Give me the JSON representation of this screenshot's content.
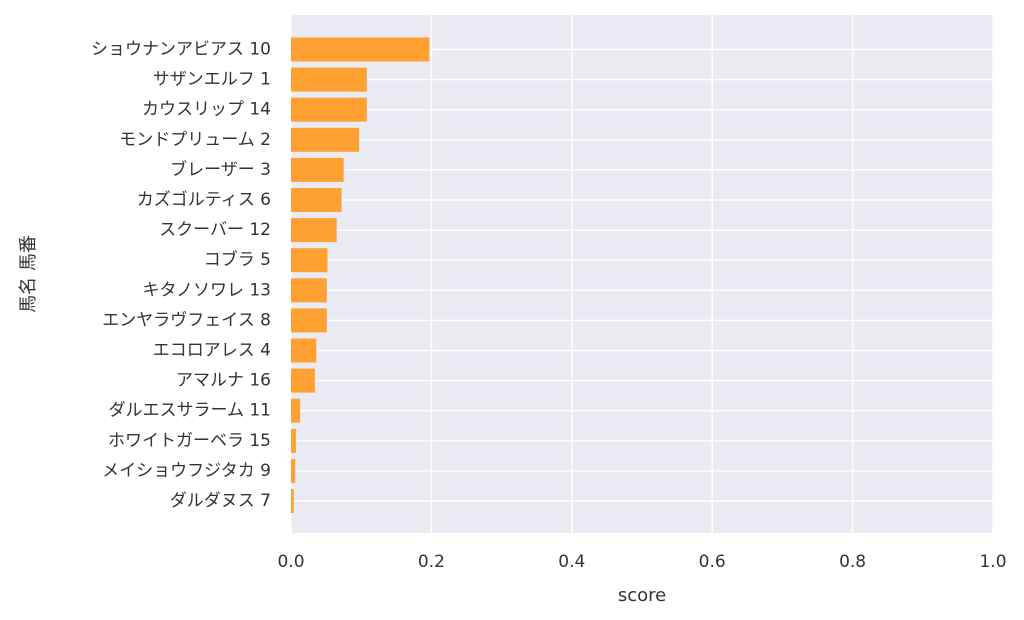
{
  "chart_data": {
    "type": "bar",
    "orientation": "horizontal",
    "title": "",
    "xlabel": "score",
    "ylabel": "馬名 馬番",
    "xlim": [
      0,
      1.0
    ],
    "x_ticks": [
      "0.0",
      "0.2",
      "0.4",
      "0.6",
      "0.8",
      "1.0"
    ],
    "x_tick_values": [
      0,
      0.2,
      0.4,
      0.6,
      0.8,
      1.0
    ],
    "grid": true,
    "bar_color": "#ffa033",
    "background_color": "#eaeaf2",
    "categories": [
      "ショウナンアビアス 10",
      "サザンエルフ 1",
      "カウスリップ 14",
      "モンドプリューム 2",
      "ブレーザー 3",
      "カズゴルティス 6",
      "スクーバー 12",
      "コブラ 5",
      "キタノソワレ 13",
      "エンヤラヴフェイス 8",
      "エコロアレス 4",
      "アマルナ 16",
      "ダルエスサラーム 11",
      "ホワイトガーベラ 15",
      "メイショウフジタカ 9",
      "ダルダヌス 7"
    ],
    "values": [
      0.197,
      0.108,
      0.108,
      0.097,
      0.075,
      0.072,
      0.065,
      0.052,
      0.051,
      0.051,
      0.036,
      0.034,
      0.013,
      0.007,
      0.006,
      0.004
    ]
  }
}
